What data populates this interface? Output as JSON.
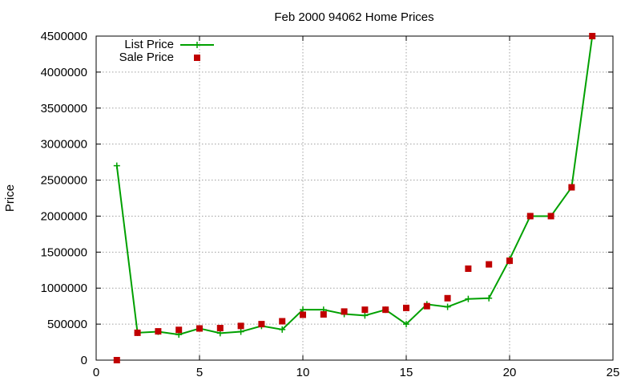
{
  "chart_data": {
    "type": "line",
    "title": "Feb 2000 94062 Home Prices",
    "xlabel": "",
    "ylabel": "Price",
    "xlim": [
      0,
      25
    ],
    "ylim": [
      0,
      4500000
    ],
    "xticks": [
      0,
      5,
      10,
      15,
      20,
      25
    ],
    "yticks": [
      0,
      500000,
      1000000,
      1500000,
      2000000,
      2500000,
      3000000,
      3500000,
      4000000,
      4500000
    ],
    "grid": true,
    "legend": "top-left",
    "series": [
      {
        "name": "List Price",
        "style": "line-with-plus-markers",
        "color": "#00a000",
        "x": [
          1,
          2,
          3,
          4,
          5,
          6,
          7,
          8,
          9,
          10,
          11,
          12,
          13,
          14,
          15,
          16,
          17,
          18,
          19,
          20,
          21,
          22,
          23,
          24
        ],
        "y": [
          2700000,
          380000,
          395000,
          355000,
          440000,
          375000,
          395000,
          475000,
          425000,
          700000,
          700000,
          640000,
          620000,
          700000,
          500000,
          775000,
          740000,
          850000,
          860000,
          1400000,
          2000000,
          2000000,
          2400000,
          4500000
        ]
      },
      {
        "name": "Sale Price",
        "style": "square-markers",
        "color": "#c00000",
        "x": [
          1,
          2,
          3,
          4,
          5,
          6,
          7,
          8,
          9,
          10,
          11,
          12,
          13,
          14,
          15,
          16,
          17,
          18,
          19,
          20,
          21,
          22,
          23,
          24
        ],
        "y": [
          0,
          380000,
          400000,
          420000,
          440000,
          445000,
          475000,
          500000,
          540000,
          630000,
          635000,
          675000,
          700000,
          700000,
          725000,
          750000,
          860000,
          1270000,
          1330000,
          1380000,
          2000000,
          2000000,
          2400000,
          4500000
        ]
      }
    ]
  }
}
